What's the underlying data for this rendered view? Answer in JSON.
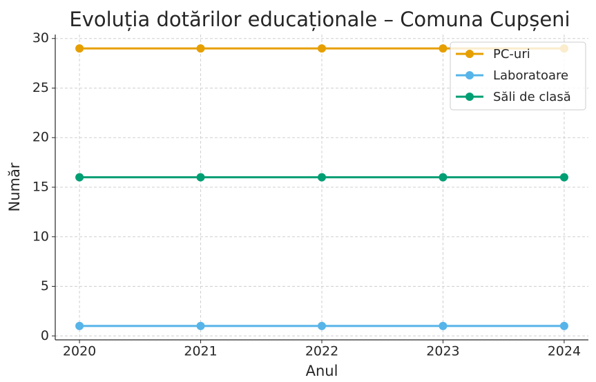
{
  "chart_data": {
    "type": "line",
    "title": "Evoluția dotărilor educaționale – Comuna Cupșeni",
    "xlabel": "Anul",
    "ylabel": "Număr",
    "x": [
      2020,
      2021,
      2022,
      2023,
      2024
    ],
    "xlim": [
      2019.8,
      2024.2
    ],
    "xticks": [
      2020,
      2021,
      2022,
      2023,
      2024
    ],
    "ylim": [
      -0.4,
      30.4
    ],
    "yticks": [
      0,
      5,
      10,
      15,
      20,
      25,
      30
    ],
    "grid": true,
    "legend": "upper right",
    "series": [
      {
        "name": "PC-uri",
        "color": "#e69f00",
        "values": [
          29,
          29,
          29,
          29,
          29
        ]
      },
      {
        "name": "Laboratoare",
        "color": "#56b4e9",
        "values": [
          1,
          1,
          1,
          1,
          1
        ]
      },
      {
        "name": "Săli de clasă",
        "color": "#009e73",
        "values": [
          16,
          16,
          16,
          16,
          16
        ]
      }
    ]
  }
}
